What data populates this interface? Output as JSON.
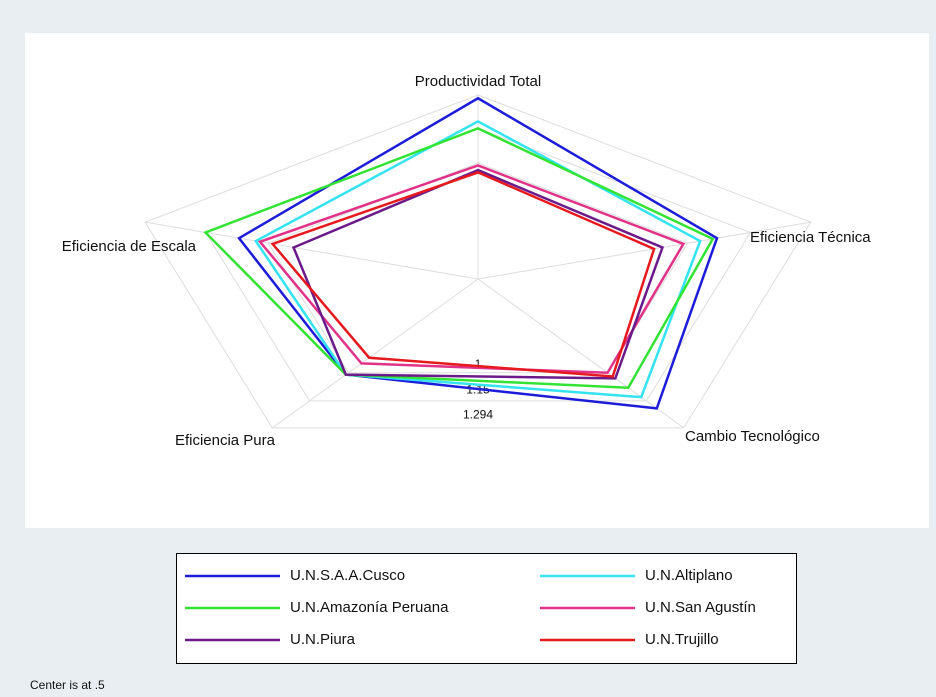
{
  "chart_data": {
    "type": "radar",
    "categories": [
      "Productividad Total",
      "Eficiencia Técnica",
      "Cambio Tecnológico",
      "Eficiencia Pura",
      "Eficiencia de Escala"
    ],
    "series": [
      {
        "name": "U.N.S.A.A.Cusco",
        "color": "#1c1cd9",
        "values": [
          1.28,
          1.07,
          1.19,
          1.01,
          1.07
        ]
      },
      {
        "name": "U.N.Altiplano",
        "color": "#33e3ef",
        "values": [
          1.18,
          1.03,
          1.13,
          1.01,
          1.03
        ]
      },
      {
        "name": "U.N.Amazonía Peruana",
        "color": "#33e333",
        "values": [
          1.15,
          1.06,
          1.08,
          1.01,
          1.15
        ]
      },
      {
        "name": "U.N.San Agustín",
        "color": "#e03388",
        "values": [
          0.99,
          0.99,
          1.0,
          0.95,
          1.02
        ]
      },
      {
        "name": "U.N.Piura",
        "color": "#6b1a8a",
        "values": [
          0.97,
          0.94,
          1.03,
          1.01,
          0.94
        ]
      },
      {
        "name": "U.N.Trujillo",
        "color": "#e6191e",
        "values": [
          0.96,
          0.92,
          1.02,
          0.92,
          0.99
        ]
      }
    ],
    "rlim": [
      0.5,
      1.294
    ],
    "rticks": [
      1,
      1.15,
      1.294
    ],
    "note": "Center is at .5"
  }
}
